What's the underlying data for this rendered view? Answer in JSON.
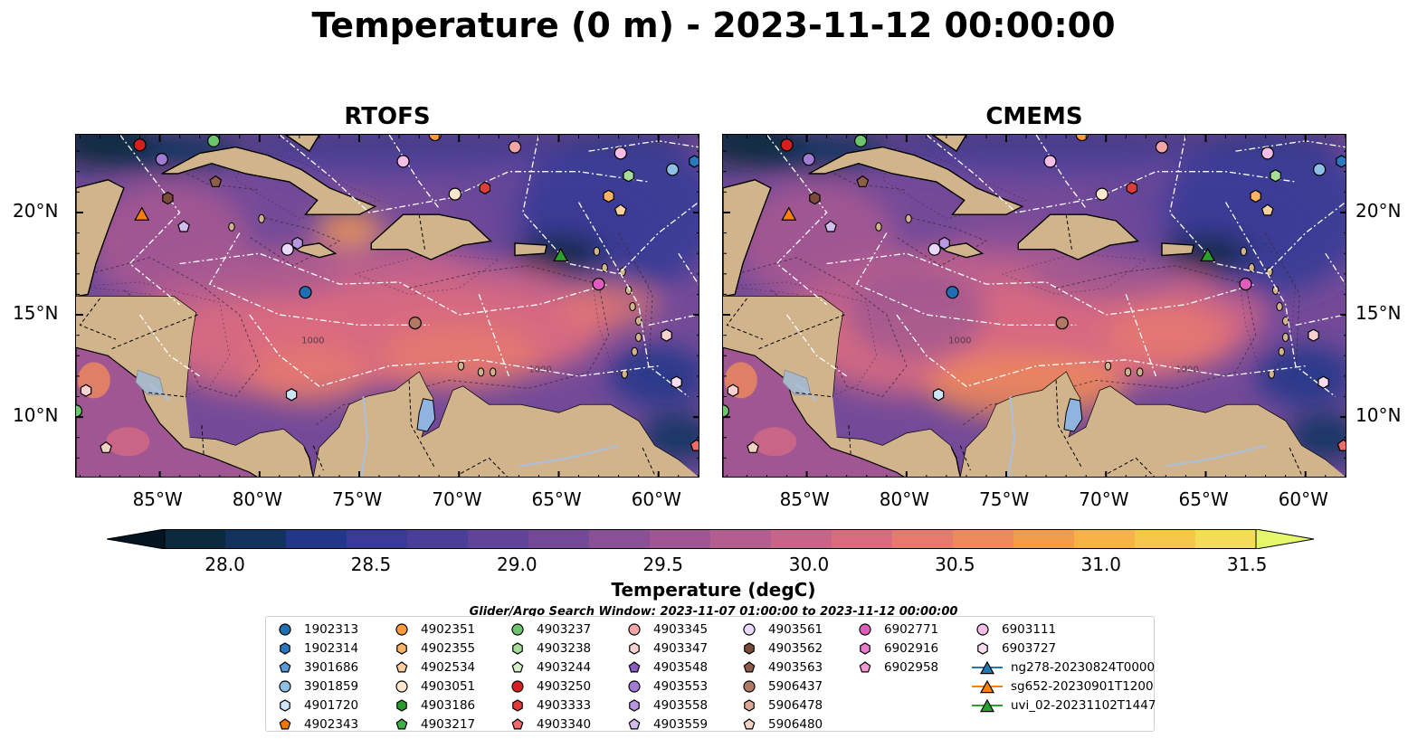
{
  "title": "Temperature (0 m) - 2023-11-12 00:00:00",
  "panels": [
    {
      "title": "RTOFS",
      "variant": "rtofs"
    },
    {
      "title": "CMEMS",
      "variant": "cmems"
    }
  ],
  "map": {
    "lon_range": [
      -89.2,
      -57.9
    ],
    "lat_range": [
      7.0,
      23.8
    ],
    "x_ticks": [
      "85°W",
      "80°W",
      "75°W",
      "70°W",
      "65°W",
      "60°W"
    ],
    "y_ticks": [
      "20°N",
      "15°N",
      "10°N"
    ],
    "contour_labels": [
      "1000",
      "1000"
    ],
    "land_color": "#d2b48c",
    "transect_color": "#ffffff"
  },
  "colorbar": {
    "label": "Temperature (degC)",
    "ticks": [
      "28.0",
      "28.5",
      "29.0",
      "29.5",
      "30.0",
      "30.5",
      "31.0",
      "31.5"
    ],
    "extend": "both",
    "colors": [
      "#0b2a3e",
      "#13335f",
      "#23378a",
      "#3a3b96",
      "#4b3e99",
      "#5f4499",
      "#744a98",
      "#8a5096",
      "#a05693",
      "#b45d8f",
      "#c8648a",
      "#da6c80",
      "#e67a6e",
      "#ee8a5b",
      "#f39d4b",
      "#f6b244",
      "#f5c74a",
      "#f3dd56"
    ],
    "under_color": "#041421",
    "over_color": "#e6f66a"
  },
  "search_window": "Glider/Argo Search Window: 2023-11-07 01:00:00 to 2023-11-12 00:00:00",
  "legend": [
    {
      "label": "1902313",
      "marker": "circle",
      "color": "#1f6fb4"
    },
    {
      "label": "1902314",
      "marker": "hexagon",
      "color": "#2b78c2"
    },
    {
      "label": "3901686",
      "marker": "pentagon",
      "color": "#5b9bd5"
    },
    {
      "label": "3901859",
      "marker": "circle",
      "color": "#8ec0e6"
    },
    {
      "label": "4901720",
      "marker": "hexagon",
      "color": "#cde6f7"
    },
    {
      "label": "4902343",
      "marker": "pentagon",
      "color": "#f07800"
    },
    {
      "label": "4902351",
      "marker": "circle",
      "color": "#fa9a3c"
    },
    {
      "label": "4902355",
      "marker": "hexagon",
      "color": "#fdb366"
    },
    {
      "label": "4902534",
      "marker": "pentagon",
      "color": "#fdd0a2"
    },
    {
      "label": "4903051",
      "marker": "circle",
      "color": "#fde7cf"
    },
    {
      "label": "4903186",
      "marker": "hexagon",
      "color": "#2a9a2a"
    },
    {
      "label": "4903217",
      "marker": "pentagon",
      "color": "#3cb043"
    },
    {
      "label": "4903237",
      "marker": "circle",
      "color": "#6cc46c"
    },
    {
      "label": "4903238",
      "marker": "hexagon",
      "color": "#a6dc9a"
    },
    {
      "label": "4903244",
      "marker": "pentagon",
      "color": "#d3f0c6"
    },
    {
      "label": "4903250",
      "marker": "circle",
      "color": "#d62020"
    },
    {
      "label": "4903333",
      "marker": "hexagon",
      "color": "#e03a3a"
    },
    {
      "label": "4903340",
      "marker": "pentagon",
      "color": "#f06a6a"
    },
    {
      "label": "4903345",
      "marker": "circle",
      "color": "#f4a6a6"
    },
    {
      "label": "4903347",
      "marker": "hexagon",
      "color": "#fbd0d0"
    },
    {
      "label": "4903548",
      "marker": "pentagon",
      "color": "#8a5cc4"
    },
    {
      "label": "4903553",
      "marker": "circle",
      "color": "#a07ad4"
    },
    {
      "label": "4903558",
      "marker": "hexagon",
      "color": "#b896e0"
    },
    {
      "label": "4903559",
      "marker": "pentagon",
      "color": "#d3bdef"
    },
    {
      "label": "4903561",
      "marker": "circle",
      "color": "#ead9fa"
    },
    {
      "label": "4903562",
      "marker": "hexagon",
      "color": "#7a4a3a"
    },
    {
      "label": "4903563",
      "marker": "pentagon",
      "color": "#8f5c4a"
    },
    {
      "label": "5906437",
      "marker": "circle",
      "color": "#b07a64"
    },
    {
      "label": "5906478",
      "marker": "hexagon",
      "color": "#d9a896"
    },
    {
      "label": "5906480",
      "marker": "pentagon",
      "color": "#f3d2c4"
    },
    {
      "label": "6902771",
      "marker": "circle",
      "color": "#e05cbc"
    },
    {
      "label": "6902916",
      "marker": "hexagon",
      "color": "#ea7ccc"
    },
    {
      "label": "6902958",
      "marker": "pentagon",
      "color": "#f29ad8"
    },
    {
      "label": "6903111",
      "marker": "circle",
      "color": "#f6bde6"
    },
    {
      "label": "6903727",
      "marker": "hexagon",
      "color": "#fbdcf0"
    },
    {
      "label": "ng278-20230824T0000",
      "marker": "triangle-line",
      "color": "#1f77b4"
    },
    {
      "label": "sg652-20230901T1200",
      "marker": "triangle-line",
      "color": "#ff7f0e"
    },
    {
      "label": "uvi_02-20231102T1447",
      "marker": "triangle-line",
      "color": "#2ca02c"
    }
  ],
  "floats": [
    {
      "label": "4903250",
      "lon": -86.0,
      "lat": 23.3
    },
    {
      "label": "4903237",
      "lon": -82.3,
      "lat": 23.5
    },
    {
      "label": "4902351",
      "lon": -71.2,
      "lat": 23.8
    },
    {
      "label": "4903345",
      "lon": -67.2,
      "lat": 23.2
    },
    {
      "label": "6903111",
      "lon": -61.9,
      "lat": 22.9
    },
    {
      "label": "1902314",
      "lon": -58.2,
      "lat": 22.5
    },
    {
      "label": "3901859",
      "lon": -59.3,
      "lat": 22.1
    },
    {
      "label": "4903238",
      "lon": -61.5,
      "lat": 21.8
    },
    {
      "label": "4903553",
      "lon": -84.9,
      "lat": 22.6
    },
    {
      "label": "6903111",
      "lon": -72.8,
      "lat": 22.5
    },
    {
      "label": "4903051",
      "lon": -70.2,
      "lat": 20.9
    },
    {
      "label": "4903333",
      "lon": -68.7,
      "lat": 21.2
    },
    {
      "label": "4902355",
      "lon": -62.5,
      "lat": 20.8
    },
    {
      "label": "4902534",
      "lon": -61.9,
      "lat": 20.1
    },
    {
      "label": "4903562",
      "lon": -84.6,
      "lat": 20.7
    },
    {
      "label": "4903563",
      "lon": -82.2,
      "lat": 21.5
    },
    {
      "label": "4903559",
      "lon": -83.8,
      "lat": 19.3
    },
    {
      "label": "4903561",
      "lon": -78.6,
      "lat": 18.2
    },
    {
      "label": "4903558",
      "lon": -78.1,
      "lat": 18.5
    },
    {
      "label": "1902313",
      "lon": -77.7,
      "lat": 16.1
    },
    {
      "label": "6902771",
      "lon": -63.0,
      "lat": 16.5
    },
    {
      "label": "5906437",
      "lon": -72.2,
      "lat": 14.6
    },
    {
      "label": "4903347",
      "lon": -59.6,
      "lat": 14.0
    },
    {
      "label": "6903727",
      "lon": -59.1,
      "lat": 11.7
    },
    {
      "label": "4901720",
      "lon": -78.4,
      "lat": 11.1
    },
    {
      "label": "4903347",
      "lon": -88.7,
      "lat": 11.3
    },
    {
      "label": "5906480",
      "lon": -87.7,
      "lat": 8.5
    },
    {
      "label": "4903340",
      "lon": -58.1,
      "lat": 8.6
    },
    {
      "label": "4903237",
      "lon": -89.2,
      "lat": 10.3
    }
  ],
  "gliders": [
    {
      "label": "sg652-20230901T1200",
      "lon": -85.9,
      "lat": 19.9,
      "color": "#ff7f0e"
    },
    {
      "label": "uvi_02-20231102T1447",
      "lon": -64.9,
      "lat": 17.9,
      "color": "#2ca02c"
    }
  ]
}
